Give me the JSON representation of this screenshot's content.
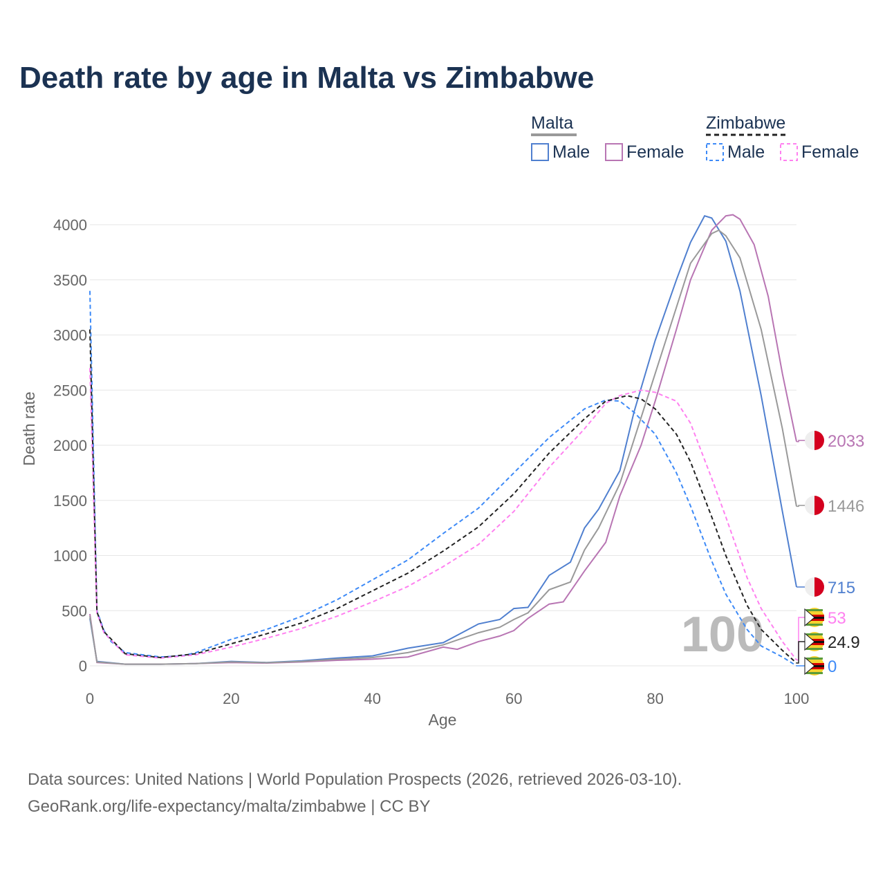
{
  "title": "Death rate by age in Malta vs Zimbabwe",
  "legend": {
    "groups": [
      {
        "name": "Malta",
        "items": [
          "Male",
          "Female"
        ]
      },
      {
        "name": "Zimbabwe",
        "items": [
          "Male",
          "Female"
        ]
      }
    ]
  },
  "source": {
    "line1": "Data sources: United Nations | World Population Prospects (2026, retrieved 2026-03-10).",
    "line2": "GeoRank.org/life-expectancy/malta/zimbabwe | CC BY"
  },
  "watermark": "100",
  "chart_data": {
    "type": "line",
    "xlabel": "Age",
    "ylabel": "Death rate",
    "xlim": [
      0,
      100
    ],
    "ylim": [
      0,
      4000
    ],
    "xticks": [
      "0",
      "20",
      "40",
      "60",
      "80",
      "100"
    ],
    "yticks": [
      "0",
      "500",
      "1000",
      "1500",
      "2000",
      "2500",
      "3000",
      "3500",
      "4000"
    ],
    "series": [
      {
        "name": "Malta Male",
        "color": "#4f7fcf",
        "dash": false,
        "end_label": "715",
        "flag": "malta",
        "points": [
          [
            0,
            430
          ],
          [
            1,
            40
          ],
          [
            5,
            15
          ],
          [
            10,
            15
          ],
          [
            15,
            20
          ],
          [
            20,
            40
          ],
          [
            25,
            30
          ],
          [
            30,
            45
          ],
          [
            35,
            70
          ],
          [
            40,
            90
          ],
          [
            45,
            160
          ],
          [
            50,
            210
          ],
          [
            55,
            380
          ],
          [
            58,
            420
          ],
          [
            60,
            520
          ],
          [
            62,
            530
          ],
          [
            65,
            820
          ],
          [
            68,
            940
          ],
          [
            70,
            1250
          ],
          [
            72,
            1420
          ],
          [
            75,
            1770
          ],
          [
            77,
            2300
          ],
          [
            80,
            2950
          ],
          [
            83,
            3500
          ],
          [
            85,
            3840
          ],
          [
            87,
            4080
          ],
          [
            88,
            4060
          ],
          [
            90,
            3850
          ],
          [
            92,
            3400
          ],
          [
            95,
            2450
          ],
          [
            98,
            1400
          ],
          [
            100,
            715
          ]
        ]
      },
      {
        "name": "Malta Female",
        "color": "#b875b3",
        "dash": false,
        "end_label": "2033",
        "flag": "malta",
        "points": [
          [
            0,
            470
          ],
          [
            1,
            30
          ],
          [
            5,
            15
          ],
          [
            10,
            15
          ],
          [
            15,
            20
          ],
          [
            20,
            30
          ],
          [
            25,
            25
          ],
          [
            30,
            35
          ],
          [
            35,
            50
          ],
          [
            40,
            60
          ],
          [
            45,
            80
          ],
          [
            50,
            170
          ],
          [
            52,
            150
          ],
          [
            55,
            220
          ],
          [
            58,
            270
          ],
          [
            60,
            320
          ],
          [
            62,
            430
          ],
          [
            65,
            560
          ],
          [
            67,
            580
          ],
          [
            70,
            860
          ],
          [
            73,
            1120
          ],
          [
            75,
            1540
          ],
          [
            78,
            2000
          ],
          [
            80,
            2400
          ],
          [
            83,
            3050
          ],
          [
            85,
            3500
          ],
          [
            88,
            3950
          ],
          [
            90,
            4080
          ],
          [
            91,
            4090
          ],
          [
            92,
            4050
          ],
          [
            94,
            3820
          ],
          [
            96,
            3350
          ],
          [
            98,
            2650
          ],
          [
            100,
            2033
          ]
        ]
      },
      {
        "name": "Malta",
        "color": "#999999",
        "dash": false,
        "end_label": "1446",
        "flag": "malta",
        "points": [
          [
            0,
            450
          ],
          [
            1,
            35
          ],
          [
            5,
            15
          ],
          [
            10,
            15
          ],
          [
            15,
            20
          ],
          [
            20,
            35
          ],
          [
            25,
            28
          ],
          [
            30,
            40
          ],
          [
            35,
            60
          ],
          [
            40,
            75
          ],
          [
            45,
            120
          ],
          [
            50,
            190
          ],
          [
            55,
            300
          ],
          [
            58,
            350
          ],
          [
            60,
            420
          ],
          [
            62,
            480
          ],
          [
            65,
            690
          ],
          [
            68,
            760
          ],
          [
            70,
            1050
          ],
          [
            72,
            1250
          ],
          [
            75,
            1650
          ],
          [
            78,
            2250
          ],
          [
            80,
            2650
          ],
          [
            83,
            3250
          ],
          [
            85,
            3650
          ],
          [
            88,
            3920
          ],
          [
            89,
            3950
          ],
          [
            90,
            3900
          ],
          [
            92,
            3700
          ],
          [
            95,
            3050
          ],
          [
            98,
            2150
          ],
          [
            100,
            1446
          ]
        ]
      },
      {
        "name": "Zimbabwe Male",
        "color": "#3d8af7",
        "dash": true,
        "end_label": "0",
        "flag": "zimbabwe",
        "points": [
          [
            0,
            3400
          ],
          [
            1,
            500
          ],
          [
            2,
            320
          ],
          [
            3,
            220
          ],
          [
            5,
            120
          ],
          [
            10,
            80
          ],
          [
            13,
            90
          ],
          [
            15,
            120
          ],
          [
            20,
            240
          ],
          [
            25,
            330
          ],
          [
            30,
            450
          ],
          [
            35,
            600
          ],
          [
            40,
            780
          ],
          [
            45,
            960
          ],
          [
            50,
            1200
          ],
          [
            55,
            1430
          ],
          [
            60,
            1750
          ],
          [
            65,
            2070
          ],
          [
            70,
            2330
          ],
          [
            73,
            2410
          ],
          [
            75,
            2400
          ],
          [
            77,
            2300
          ],
          [
            80,
            2100
          ],
          [
            83,
            1750
          ],
          [
            85,
            1450
          ],
          [
            88,
            950
          ],
          [
            90,
            650
          ],
          [
            93,
            330
          ],
          [
            95,
            180
          ],
          [
            98,
            80
          ],
          [
            100,
            0
          ]
        ]
      },
      {
        "name": "Zimbabwe Female",
        "color": "#ff80f0",
        "dash": true,
        "end_label": "53",
        "flag": "zimbabwe",
        "points": [
          [
            0,
            2700
          ],
          [
            1,
            480
          ],
          [
            2,
            300
          ],
          [
            5,
            100
          ],
          [
            10,
            70
          ],
          [
            15,
            100
          ],
          [
            20,
            170
          ],
          [
            25,
            250
          ],
          [
            30,
            340
          ],
          [
            35,
            450
          ],
          [
            40,
            580
          ],
          [
            45,
            720
          ],
          [
            50,
            900
          ],
          [
            55,
            1100
          ],
          [
            60,
            1400
          ],
          [
            65,
            1800
          ],
          [
            70,
            2150
          ],
          [
            73,
            2380
          ],
          [
            75,
            2450
          ],
          [
            78,
            2500
          ],
          [
            80,
            2480
          ],
          [
            83,
            2400
          ],
          [
            85,
            2200
          ],
          [
            88,
            1700
          ],
          [
            90,
            1350
          ],
          [
            93,
            800
          ],
          [
            95,
            520
          ],
          [
            98,
            220
          ],
          [
            100,
            53
          ]
        ]
      },
      {
        "name": "Zimbabwe",
        "color": "#222222",
        "dash": true,
        "end_label": "24.9",
        "flag": "zimbabwe",
        "points": [
          [
            0,
            3050
          ],
          [
            1,
            490
          ],
          [
            2,
            310
          ],
          [
            5,
            110
          ],
          [
            10,
            75
          ],
          [
            15,
            110
          ],
          [
            20,
            200
          ],
          [
            25,
            290
          ],
          [
            30,
            390
          ],
          [
            35,
            520
          ],
          [
            40,
            680
          ],
          [
            45,
            840
          ],
          [
            50,
            1040
          ],
          [
            55,
            1260
          ],
          [
            60,
            1560
          ],
          [
            65,
            1930
          ],
          [
            70,
            2240
          ],
          [
            73,
            2400
          ],
          [
            76,
            2450
          ],
          [
            78,
            2420
          ],
          [
            80,
            2330
          ],
          [
            83,
            2100
          ],
          [
            85,
            1850
          ],
          [
            88,
            1350
          ],
          [
            90,
            1000
          ],
          [
            93,
            550
          ],
          [
            95,
            330
          ],
          [
            98,
            140
          ],
          [
            100,
            24.9
          ]
        ]
      }
    ]
  }
}
